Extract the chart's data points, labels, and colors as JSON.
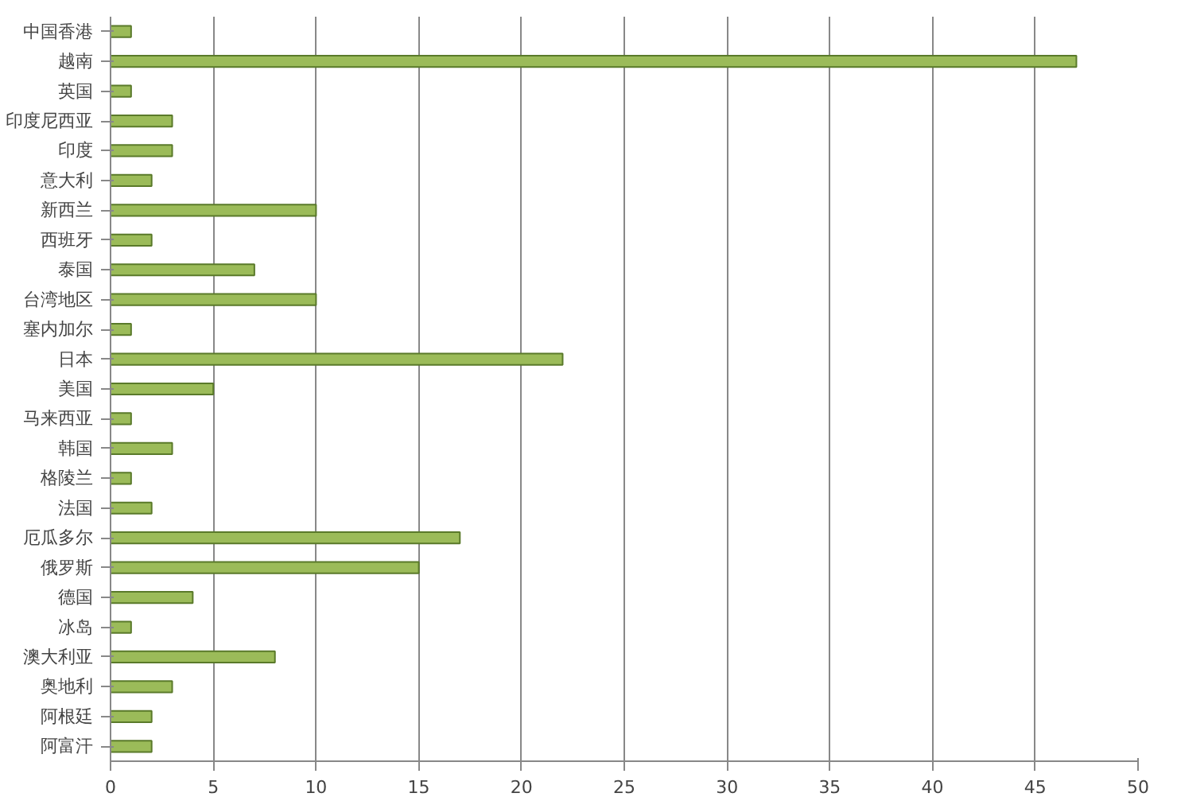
{
  "chart_data": {
    "type": "bar",
    "orientation": "horizontal",
    "categories": [
      "中国香港",
      "越南",
      "英国",
      "印度尼西亚",
      "印度",
      "意大利",
      "新西兰",
      "西班牙",
      "泰国",
      "台湾地区",
      "塞内加尔",
      "日本",
      "美国",
      "马来西亚",
      "韩国",
      "格陵兰",
      "法国",
      "厄瓜多尔",
      "俄罗斯",
      "德国",
      "冰岛",
      "澳大利亚",
      "奥地利",
      "阿根廷",
      "阿富汗"
    ],
    "values": [
      1,
      47,
      1,
      3,
      3,
      2,
      10,
      2,
      7,
      10,
      1,
      22,
      5,
      1,
      3,
      1,
      2,
      17,
      15,
      4,
      1,
      8,
      3,
      2,
      2
    ],
    "color": "#9bbb59",
    "xlim": [
      0,
      50
    ],
    "xticks": [
      0,
      5,
      10,
      15,
      20,
      25,
      30,
      35,
      40,
      45,
      50
    ],
    "grid": "x"
  }
}
